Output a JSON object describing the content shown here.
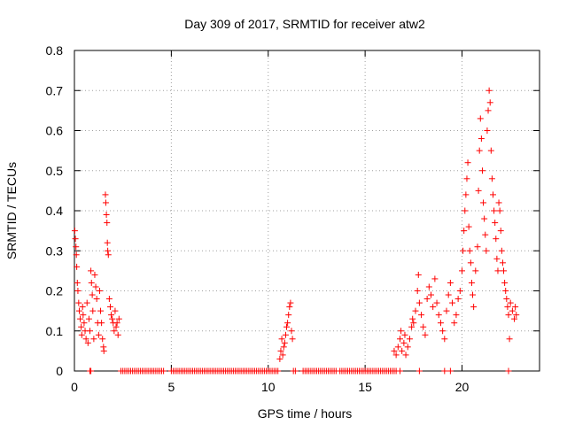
{
  "chart_data": {
    "type": "scatter",
    "title": "Day 309 of 2017, SRMTID for receiver atw2",
    "xlabel": "GPS time / hours",
    "ylabel": "SRMTID / TECUs",
    "xlim": [
      0,
      24
    ],
    "ylim": [
      0,
      0.8
    ],
    "xticks": [
      "0",
      "5",
      "10",
      "15",
      "20"
    ],
    "yticks": [
      "0",
      "0.1",
      "0.2",
      "0.3",
      "0.4",
      "0.5",
      "0.6",
      "0.7",
      "0.8"
    ],
    "grid": true,
    "marker": "plus",
    "series_color": "#ff0000",
    "series": [
      {
        "name": "SRMTID",
        "points": [
          [
            0.02,
            0.35
          ],
          [
            0.05,
            0.33
          ],
          [
            0.08,
            0.31
          ],
          [
            0.1,
            0.29
          ],
          [
            0.12,
            0.26
          ],
          [
            0.15,
            0.22
          ],
          [
            0.18,
            0.2
          ],
          [
            0.22,
            0.17
          ],
          [
            0.25,
            0.15
          ],
          [
            0.3,
            0.13
          ],
          [
            0.35,
            0.11
          ],
          [
            0.38,
            0.09
          ],
          [
            0.42,
            0.16
          ],
          [
            0.45,
            0.14
          ],
          [
            0.5,
            0.12
          ],
          [
            0.55,
            0.1
          ],
          [
            0.6,
            0.08
          ],
          [
            0.65,
            0.17
          ],
          [
            0.7,
            0.07
          ],
          [
            0.75,
            0.13
          ],
          [
            0.8,
            0.1
          ],
          [
            0.85,
            0.25
          ],
          [
            0.88,
            0.22
          ],
          [
            0.92,
            0.19
          ],
          [
            0.95,
            0.15
          ],
          [
            1.0,
            0.08
          ],
          [
            1.05,
            0.24
          ],
          [
            1.1,
            0.21
          ],
          [
            1.15,
            0.18
          ],
          [
            1.2,
            0.12
          ],
          [
            1.25,
            0.09
          ],
          [
            1.3,
            0.2
          ],
          [
            1.35,
            0.15
          ],
          [
            1.4,
            0.12
          ],
          [
            1.45,
            0.08
          ],
          [
            1.5,
            0.06
          ],
          [
            1.52,
            0.05
          ],
          [
            1.6,
            0.44
          ],
          [
            1.62,
            0.42
          ],
          [
            1.65,
            0.39
          ],
          [
            1.68,
            0.37
          ],
          [
            1.7,
            0.32
          ],
          [
            1.72,
            0.3
          ],
          [
            1.75,
            0.29
          ],
          [
            1.8,
            0.18
          ],
          [
            1.85,
            0.16
          ],
          [
            1.9,
            0.14
          ],
          [
            1.95,
            0.13
          ],
          [
            2.0,
            0.12
          ],
          [
            2.05,
            0.1
          ],
          [
            2.1,
            0.15
          ],
          [
            2.15,
            0.11
          ],
          [
            2.2,
            0.12
          ],
          [
            2.25,
            0.09
          ],
          [
            2.3,
            0.13
          ],
          [
            10.6,
            0.03
          ],
          [
            10.65,
            0.05
          ],
          [
            10.7,
            0.08
          ],
          [
            10.75,
            0.04
          ],
          [
            10.8,
            0.06
          ],
          [
            10.85,
            0.07
          ],
          [
            10.9,
            0.09
          ],
          [
            10.95,
            0.11
          ],
          [
            11.0,
            0.12
          ],
          [
            11.05,
            0.14
          ],
          [
            11.1,
            0.16
          ],
          [
            11.15,
            0.17
          ],
          [
            11.2,
            0.1
          ],
          [
            11.25,
            0.08
          ],
          [
            16.5,
            0.05
          ],
          [
            16.6,
            0.04
          ],
          [
            16.7,
            0.06
          ],
          [
            16.8,
            0.08
          ],
          [
            16.85,
            0.1
          ],
          [
            16.9,
            0.05
          ],
          [
            17.0,
            0.07
          ],
          [
            17.05,
            0.09
          ],
          [
            17.1,
            0.04
          ],
          [
            17.2,
            0.06
          ],
          [
            17.3,
            0.08
          ],
          [
            17.4,
            0.11
          ],
          [
            17.45,
            0.13
          ],
          [
            17.5,
            0.12
          ],
          [
            17.6,
            0.15
          ],
          [
            17.7,
            0.2
          ],
          [
            17.75,
            0.24
          ],
          [
            17.8,
            0.17
          ],
          [
            17.9,
            0.14
          ],
          [
            18.0,
            0.11
          ],
          [
            18.1,
            0.09
          ],
          [
            18.2,
            0.18
          ],
          [
            18.3,
            0.21
          ],
          [
            18.4,
            0.19
          ],
          [
            18.5,
            0.16
          ],
          [
            18.6,
            0.23
          ],
          [
            18.7,
            0.17
          ],
          [
            18.8,
            0.14
          ],
          [
            18.9,
            0.12
          ],
          [
            19.0,
            0.1
          ],
          [
            19.1,
            0.08
          ],
          [
            19.2,
            0.15
          ],
          [
            19.3,
            0.19
          ],
          [
            19.4,
            0.22
          ],
          [
            19.5,
            0.17
          ],
          [
            19.6,
            0.12
          ],
          [
            19.7,
            0.14
          ],
          [
            19.8,
            0.18
          ],
          [
            19.9,
            0.2
          ],
          [
            20.0,
            0.25
          ],
          [
            20.05,
            0.3
          ],
          [
            20.1,
            0.35
          ],
          [
            20.15,
            0.4
          ],
          [
            20.2,
            0.44
          ],
          [
            20.25,
            0.48
          ],
          [
            20.3,
            0.52
          ],
          [
            20.35,
            0.36
          ],
          [
            20.4,
            0.3
          ],
          [
            20.45,
            0.27
          ],
          [
            20.5,
            0.22
          ],
          [
            20.55,
            0.19
          ],
          [
            20.6,
            0.16
          ],
          [
            20.7,
            0.25
          ],
          [
            20.8,
            0.31
          ],
          [
            20.85,
            0.45
          ],
          [
            20.9,
            0.55
          ],
          [
            20.95,
            0.63
          ],
          [
            21.0,
            0.58
          ],
          [
            21.05,
            0.5
          ],
          [
            21.1,
            0.42
          ],
          [
            21.15,
            0.38
          ],
          [
            21.2,
            0.34
          ],
          [
            21.25,
            0.3
          ],
          [
            21.3,
            0.6
          ],
          [
            21.35,
            0.65
          ],
          [
            21.4,
            0.7
          ],
          [
            21.45,
            0.67
          ],
          [
            21.5,
            0.55
          ],
          [
            21.55,
            0.48
          ],
          [
            21.6,
            0.44
          ],
          [
            21.65,
            0.4
          ],
          [
            21.7,
            0.37
          ],
          [
            21.75,
            0.33
          ],
          [
            21.8,
            0.28
          ],
          [
            21.85,
            0.25
          ],
          [
            21.9,
            0.42
          ],
          [
            21.95,
            0.4
          ],
          [
            22.0,
            0.35
          ],
          [
            22.05,
            0.3
          ],
          [
            22.1,
            0.27
          ],
          [
            22.15,
            0.25
          ],
          [
            22.2,
            0.22
          ],
          [
            22.25,
            0.2
          ],
          [
            22.3,
            0.18
          ],
          [
            22.35,
            0.16
          ],
          [
            22.4,
            0.14
          ],
          [
            22.45,
            0.08
          ],
          [
            22.5,
            0.17
          ],
          [
            22.6,
            0.15
          ],
          [
            22.7,
            0.13
          ],
          [
            22.75,
            0.16
          ],
          [
            22.8,
            0.14
          ]
        ],
        "zero_points": [
          0.8,
          0.85,
          2.4,
          2.5,
          2.6,
          2.7,
          2.8,
          2.9,
          3.0,
          3.1,
          3.2,
          3.3,
          3.4,
          3.5,
          3.6,
          3.7,
          3.8,
          3.9,
          4.0,
          4.1,
          4.2,
          4.3,
          4.4,
          4.5,
          4.6,
          5.0,
          5.1,
          5.2,
          5.3,
          5.4,
          5.5,
          5.6,
          5.7,
          5.8,
          5.9,
          6.0,
          6.1,
          6.2,
          6.3,
          6.4,
          6.5,
          6.6,
          6.7,
          6.8,
          6.9,
          7.0,
          7.1,
          7.2,
          7.3,
          7.4,
          7.5,
          7.6,
          7.7,
          7.8,
          7.9,
          8.0,
          8.1,
          8.2,
          8.3,
          8.4,
          8.5,
          8.6,
          8.7,
          8.8,
          8.9,
          9.0,
          9.1,
          9.2,
          9.3,
          9.4,
          9.5,
          9.6,
          9.7,
          9.8,
          9.9,
          10.0,
          10.1,
          10.2,
          10.3,
          10.4,
          10.5,
          11.3,
          11.4,
          11.8,
          11.9,
          12.0,
          12.1,
          12.2,
          12.3,
          12.4,
          12.5,
          12.6,
          12.7,
          12.8,
          12.9,
          13.0,
          13.1,
          13.2,
          13.3,
          13.4,
          13.5,
          13.7,
          13.8,
          13.9,
          14.0,
          14.1,
          14.2,
          14.3,
          14.4,
          14.5,
          14.6,
          14.7,
          14.8,
          14.9,
          15.0,
          15.1,
          15.2,
          15.3,
          15.4,
          15.5,
          15.6,
          15.7,
          15.8,
          15.9,
          16.0,
          16.1,
          16.2,
          16.3,
          16.4,
          16.5,
          16.6,
          16.8,
          17.8,
          19.1,
          19.4,
          22.4
        ]
      }
    ]
  }
}
